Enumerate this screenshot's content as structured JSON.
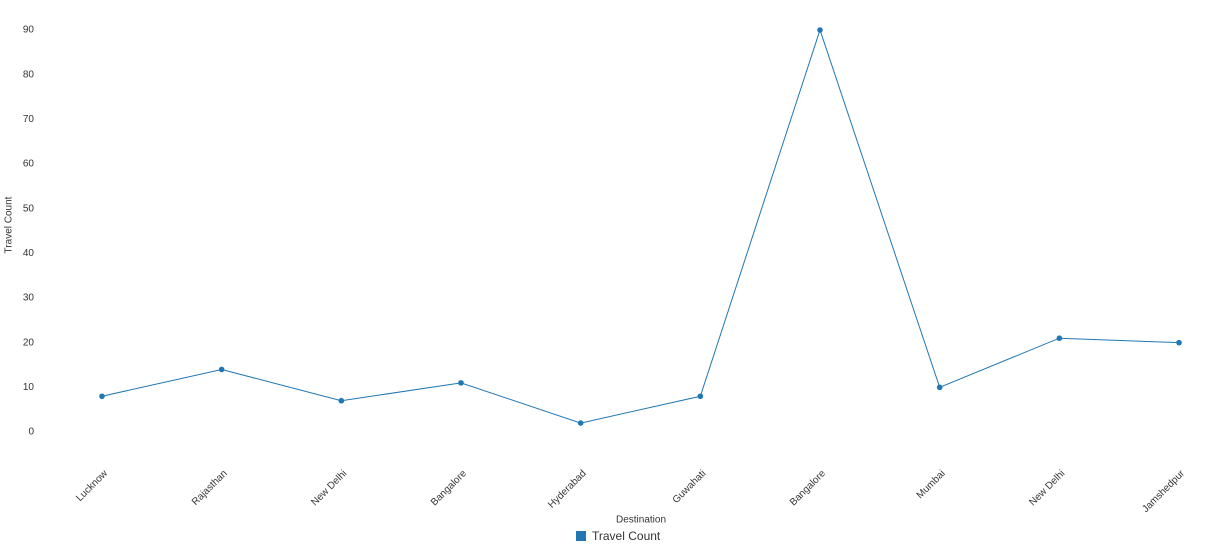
{
  "chart_data": {
    "type": "line",
    "x_label": "Destination",
    "y_label": "Travel Count",
    "categories": [
      "Lucknow",
      "Rajasthan",
      "New Delhi",
      "Bangalore",
      "Hyderabad",
      "Guwahati",
      "Bangalore",
      "Mumbai",
      "New Delhi",
      "Jamshedpur"
    ],
    "series": [
      {
        "name": "Travel Count",
        "color": "#1f77b4",
        "values": [
          8,
          14,
          7,
          11,
          2,
          8,
          90,
          10,
          21,
          20
        ]
      }
    ],
    "ylim": [
      0,
      90
    ],
    "yticks": [
      0,
      10,
      20,
      30,
      40,
      50,
      60,
      70,
      80,
      90
    ],
    "grid": false,
    "legend": "bottom"
  }
}
